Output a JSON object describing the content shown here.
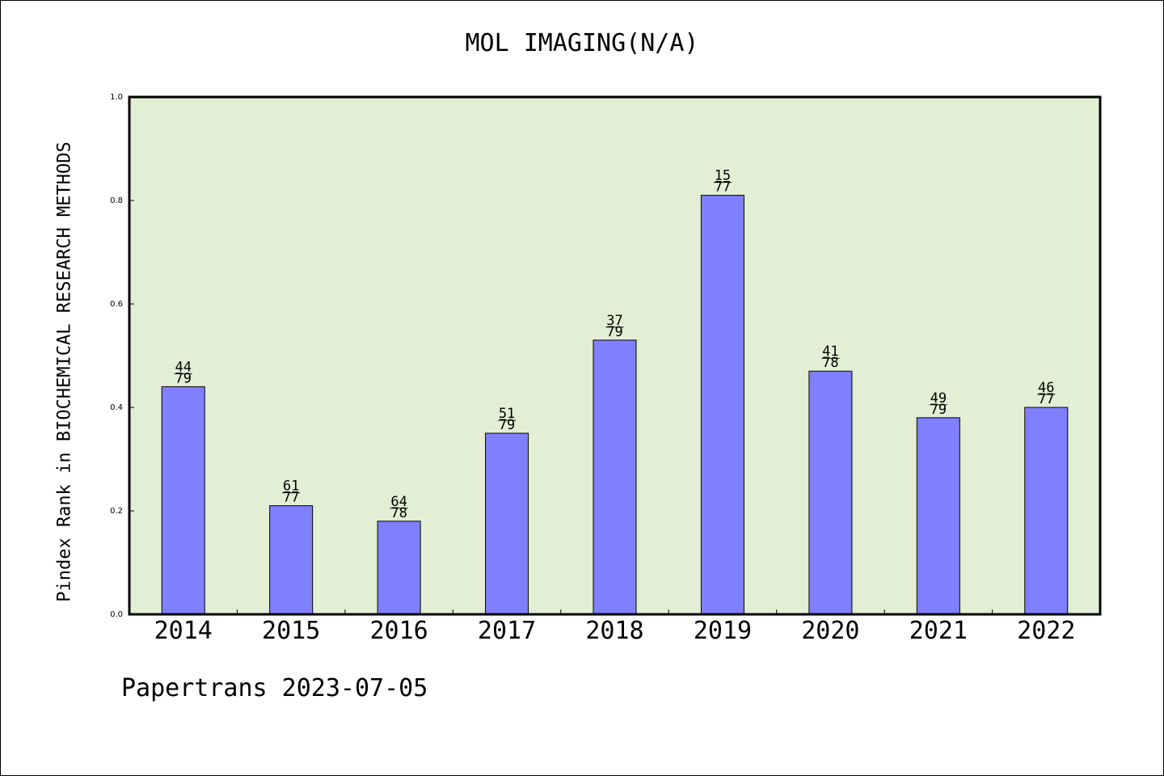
{
  "chart_data": {
    "type": "bar",
    "title": "MOL IMAGING(N/A)",
    "xlabel": "",
    "ylabel": "Pindex Rank in BIOCHEMICAL RESEARCH METHODS",
    "categories": [
      "2014",
      "2015",
      "2016",
      "2017",
      "2018",
      "2019",
      "2020",
      "2021",
      "2022"
    ],
    "values": [
      0.44,
      0.21,
      0.18,
      0.35,
      0.53,
      0.81,
      0.47,
      0.38,
      0.4
    ],
    "rank": [
      "44",
      "61",
      "64",
      "51",
      "37",
      "15",
      "41",
      "49",
      "46"
    ],
    "total": [
      "79",
      "77",
      "78",
      "79",
      "79",
      "77",
      "78",
      "79",
      "77"
    ],
    "ylim": [
      0,
      1.0
    ],
    "yticks": [
      "0.0",
      "0.2",
      "0.4",
      "0.6",
      "0.8",
      "1.0"
    ],
    "grid": false,
    "colors": {
      "bar": "#8080ff",
      "plot_background": "#e2efd5",
      "axis": "#000000"
    }
  },
  "footer": "Papertrans 2023-07-05"
}
